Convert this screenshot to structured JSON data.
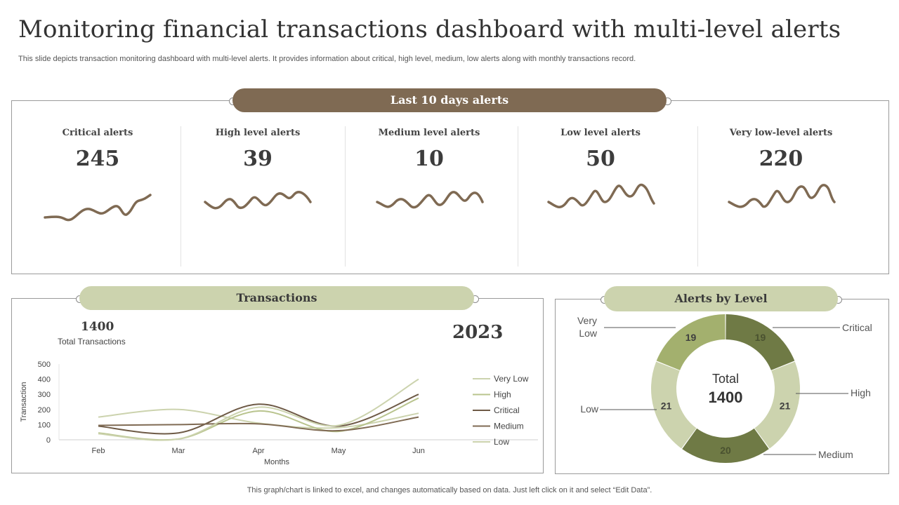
{
  "title": "Monitoring financial transactions dashboard with multi-level alerts",
  "subtitle": "This slide depicts transaction monitoring dashboard with multi-level alerts. It provides information about critical, high level, medium, low alerts along with monthly transactions record.",
  "footer": "This graph/chart is linked to excel,  and changes automatically based on data. Just left click on it and select “Edit Data”.",
  "colors": {
    "brown": "#7f6a53",
    "sage": "#ccd3ae",
    "olive_dark": "#6f7a45",
    "olive_mid": "#a3b06e",
    "olive_light": "#ccd3ae"
  },
  "alerts_panel": {
    "header": "Last 10 days alerts",
    "items": [
      {
        "label": "Critical alerts",
        "value": "245"
      },
      {
        "label": "High level alerts",
        "value": "39"
      },
      {
        "label": "Medium level alerts",
        "value": "10"
      },
      {
        "label": "Low level alerts",
        "value": "50"
      },
      {
        "label": "Very low-level alerts",
        "value": "220"
      }
    ]
  },
  "transactions_panel": {
    "header": "Transactions",
    "total_value": "1400",
    "total_label": "Total Transactions",
    "year": "2023"
  },
  "level_panel": {
    "header": "Alerts by Level",
    "center_label": "Total",
    "center_value": "1400"
  },
  "chart_data": [
    {
      "type": "line",
      "categories": [
        "Feb",
        "Mar",
        "Apr",
        "May",
        "Jun"
      ],
      "xlabel": "Months",
      "ylabel": "Transaction",
      "ylim": [
        0,
        500
      ],
      "yticks": [
        0,
        100,
        200,
        300,
        400,
        500
      ],
      "legend_position": "right",
      "series": [
        {
          "name": "Very Low",
          "color": "#ccd3ae",
          "values": [
            150,
            200,
            110,
            80,
            175
          ]
        },
        {
          "name": "High",
          "color": "#b9c48e",
          "values": [
            45,
            5,
            190,
            55,
            275
          ]
        },
        {
          "name": "Critical",
          "color": "#6e5a46",
          "values": [
            90,
            45,
            235,
            90,
            300
          ]
        },
        {
          "name": "Medium",
          "color": "#7f6a53",
          "values": [
            95,
            100,
            105,
            60,
            150
          ]
        },
        {
          "name": "Low",
          "color": "#ccd3ae",
          "values": [
            40,
            5,
            215,
            95,
            400
          ]
        }
      ]
    },
    {
      "type": "pie",
      "title": "Alerts by Level",
      "categories": [
        "Critical",
        "High",
        "Medium",
        "Low",
        "Very Low"
      ],
      "values": [
        19,
        21,
        20,
        21,
        19
      ],
      "colors": [
        "#6f7a45",
        "#ccd3ae",
        "#6f7a45",
        "#ccd3ae",
        "#a3b06e"
      ],
      "label_colors": [
        "#4a5230",
        "#3f3f3f",
        "#4a5230",
        "#3f3f3f",
        "#3f3f3f"
      ],
      "labels": [
        "Critical",
        "High",
        "Medium",
        "Low",
        "Very\nLow"
      ]
    }
  ]
}
